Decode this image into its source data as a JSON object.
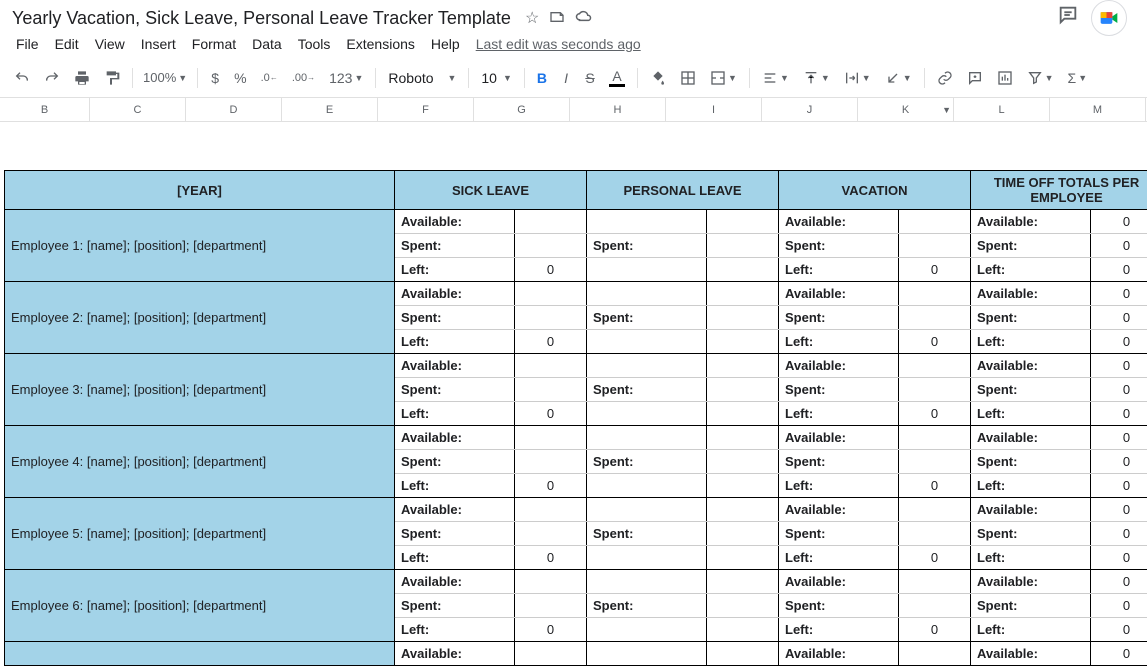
{
  "doc": {
    "title": "Yearly Vacation, Sick Leave, Personal Leave Tracker Template"
  },
  "menu": {
    "file": "File",
    "edit": "Edit",
    "view": "View",
    "insert": "Insert",
    "format": "Format",
    "data": "Data",
    "tools": "Tools",
    "extensions": "Extensions",
    "help": "Help",
    "last_edit": "Last edit was seconds ago"
  },
  "toolbar": {
    "zoom": "100%",
    "currency": "$",
    "percent": "%",
    "dec_dec": ".0",
    "inc_dec": ".00",
    "more_fmt": "123",
    "font": "Roboto",
    "size": "10"
  },
  "columns": {
    "B": "B",
    "C": "C",
    "D": "D",
    "E": "E",
    "F": "F",
    "G": "G",
    "H": "H",
    "I": "I",
    "J": "J",
    "K": "K",
    "L": "L",
    "M": "M"
  },
  "headers": {
    "year": "[YEAR]",
    "sick": "SICK LEAVE",
    "personal": "PERSONAL LEAVE",
    "vacation": "VACATION",
    "totals": "TIME OFF TOTALS PER EMPLOYEE"
  },
  "labels": {
    "available": "Available:",
    "spent": "Spent:",
    "left": "Left:"
  },
  "employees": [
    {
      "name": "Employee 1: [name]; [position]; [department]",
      "sick_left": "0",
      "vac_left": "0",
      "tot_a": "0",
      "tot_s": "0",
      "tot_l": "0"
    },
    {
      "name": "Employee 2: [name]; [position]; [department]",
      "sick_left": "0",
      "vac_left": "0",
      "tot_a": "0",
      "tot_s": "0",
      "tot_l": "0"
    },
    {
      "name": "Employee 3: [name]; [position]; [department]",
      "sick_left": "0",
      "vac_left": "0",
      "tot_a": "0",
      "tot_s": "0",
      "tot_l": "0"
    },
    {
      "name": "Employee 4: [name]; [position]; [department]",
      "sick_left": "0",
      "vac_left": "0",
      "tot_a": "0",
      "tot_s": "0",
      "tot_l": "0"
    },
    {
      "name": "Employee 5: [name]; [position]; [department]",
      "sick_left": "0",
      "vac_left": "0",
      "tot_a": "0",
      "tot_s": "0",
      "tot_l": "0"
    },
    {
      "name": "Employee 6: [name]; [position]; [department]",
      "sick_left": "0",
      "vac_left": "0",
      "tot_a": "0",
      "tot_s": "0",
      "tot_l": "0"
    }
  ],
  "partial": {
    "available": "Available:",
    "tot_a": "0"
  },
  "colors": {
    "header_bg": "#a3d3e8",
    "border": "#000000",
    "thin_border": "#cccccc"
  }
}
